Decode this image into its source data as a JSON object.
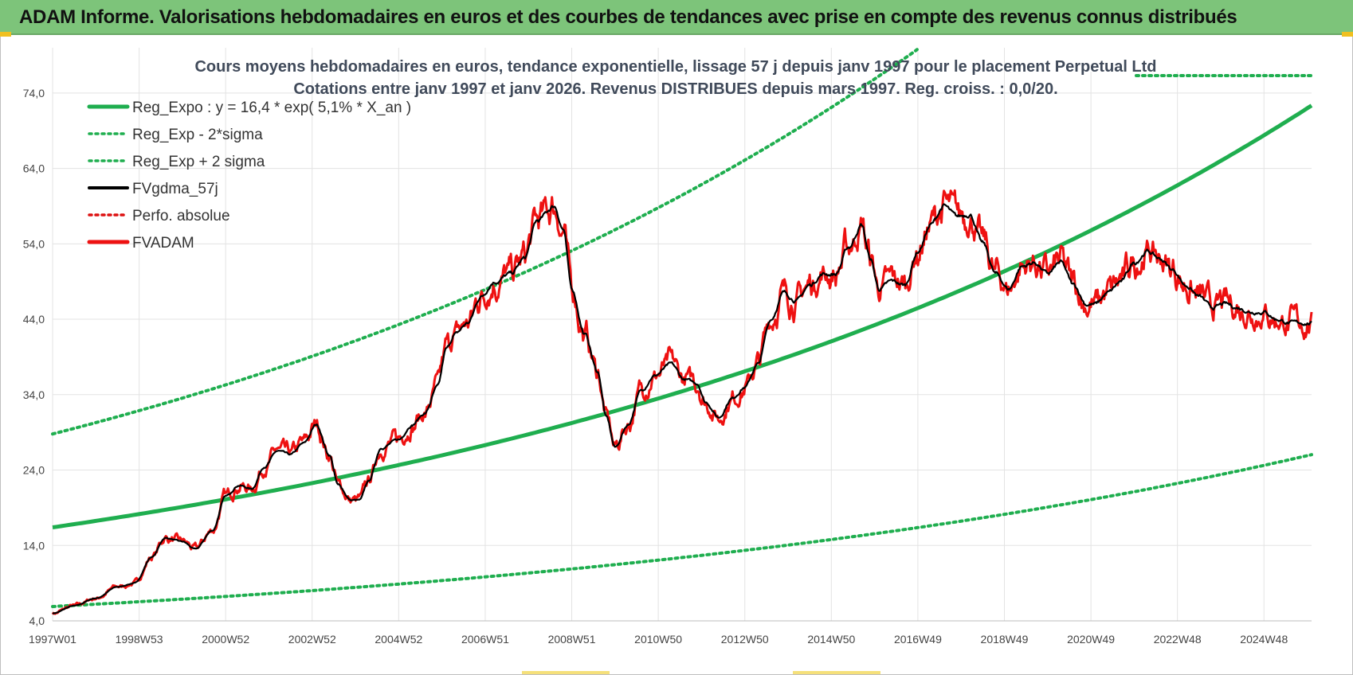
{
  "header": {
    "title": "ADAM Informe. Valorisations hebdomadaires en euros et des courbes de tendances avec prise en compte des revenus connus distribués"
  },
  "colors": {
    "header_bg": "#7dc47a",
    "trend": "#1fae4f",
    "actual": "#ee1111",
    "smooth": "#000000",
    "grid": "#e3e3e3"
  },
  "chart_data": {
    "type": "line",
    "title": "Cours moyens hebdomadaires en euros, tendance exponentielle, lissage 57 j depuis janv 1997 pour le placement Perpetual Ltd",
    "subtitle": "Cotations entre janv 1997 et janv 2026. Revenus DISTRIBUES depuis mars 1997. Reg. croiss. : 0,0/20.",
    "xlabel": "",
    "ylabel": "",
    "x_range": [
      1997.0,
      2026.1
    ],
    "ylim": [
      4,
      80
    ],
    "y_ticks": [
      "4,0",
      "14,0",
      "24,0",
      "34,0",
      "44,0",
      "54,0",
      "64,0",
      "74,0"
    ],
    "x_ticks": [
      {
        "label": "1997W01",
        "x": 1997.0
      },
      {
        "label": "1998W53",
        "x": 1999.0
      },
      {
        "label": "2000W52",
        "x": 2001.0
      },
      {
        "label": "2002W52",
        "x": 2003.0
      },
      {
        "label": "2004W52",
        "x": 2005.0
      },
      {
        "label": "2006W51",
        "x": 2007.0
      },
      {
        "label": "2008W51",
        "x": 2009.0
      },
      {
        "label": "2010W50",
        "x": 2011.0
      },
      {
        "label": "2012W50",
        "x": 2013.0
      },
      {
        "label": "2014W50",
        "x": 2015.0
      },
      {
        "label": "2016W49",
        "x": 2017.0
      },
      {
        "label": "2018W49",
        "x": 2019.0
      },
      {
        "label": "2020W49",
        "x": 2021.0
      },
      {
        "label": "2022W48",
        "x": 2023.0
      },
      {
        "label": "2024W48",
        "x": 2025.0
      }
    ],
    "grid": true,
    "legend_position": "top-left",
    "trend": {
      "a": 16.4,
      "rate": 0.051,
      "sigma_factor": 0.64
    },
    "series": [
      {
        "name": "Reg_Expo : y = 16,4 * exp( 5,1% *  X_an )",
        "style": "solid-thick",
        "color": "#1fae4f"
      },
      {
        "name": "Reg_Exp - 2*sigma",
        "style": "dotted",
        "color": "#1fae4f"
      },
      {
        "name": "Reg_Exp + 2 sigma",
        "style": "dotted",
        "color": "#1fae4f"
      },
      {
        "name": "FVgdma_57j",
        "style": "solid",
        "color": "#000000"
      },
      {
        "name": "Perfo. absolue",
        "style": "dotted",
        "color": "#dd1111"
      },
      {
        "name": "FVADAM",
        "style": "solid-thick",
        "color": "#ee1111"
      }
    ],
    "price_anchors": [
      [
        1997.0,
        5.0
      ],
      [
        1997.5,
        6.0
      ],
      [
        1998.0,
        7.0
      ],
      [
        1998.5,
        8.5
      ],
      [
        1998.9,
        9.0
      ],
      [
        1999.3,
        12.5
      ],
      [
        1999.6,
        15.0
      ],
      [
        2000.0,
        14.5
      ],
      [
        2000.3,
        13.5
      ],
      [
        2000.7,
        16.0
      ],
      [
        2001.0,
        20.5
      ],
      [
        2001.3,
        22.0
      ],
      [
        2001.6,
        21.5
      ],
      [
        2001.9,
        24.5
      ],
      [
        2002.2,
        26.5
      ],
      [
        2002.5,
        26.0
      ],
      [
        2002.8,
        27.5
      ],
      [
        2003.1,
        30.0
      ],
      [
        2003.4,
        26.0
      ],
      [
        2003.6,
        22.0
      ],
      [
        2003.9,
        20.0
      ],
      [
        2004.1,
        20.0
      ],
      [
        2004.3,
        22.5
      ],
      [
        2004.6,
        27.0
      ],
      [
        2005.0,
        28.0
      ],
      [
        2005.3,
        30.0
      ],
      [
        2005.6,
        31.5
      ],
      [
        2005.9,
        35.0
      ],
      [
        2006.1,
        40.0
      ],
      [
        2006.3,
        42.0
      ],
      [
        2006.6,
        43.5
      ],
      [
        2006.9,
        47.0
      ],
      [
        2007.2,
        49.0
      ],
      [
        2007.6,
        50.0
      ],
      [
        2007.9,
        52.0
      ],
      [
        2008.2,
        57.0
      ],
      [
        2008.6,
        59.0
      ],
      [
        2008.8,
        56.0
      ],
      [
        2009.0,
        48.0
      ],
      [
        2009.3,
        42.0
      ],
      [
        2009.6,
        37.0
      ],
      [
        2009.8,
        31.0
      ],
      [
        2010.0,
        27.0
      ],
      [
        2010.3,
        30.0
      ],
      [
        2010.6,
        34.5
      ],
      [
        2010.9,
        36.5
      ],
      [
        2011.3,
        38.0
      ],
      [
        2011.6,
        36.0
      ],
      [
        2011.9,
        35.5
      ],
      [
        2012.1,
        33.0
      ],
      [
        2012.4,
        31.0
      ],
      [
        2012.7,
        33.5
      ],
      [
        2013.0,
        35.0
      ],
      [
        2013.3,
        38.0
      ],
      [
        2013.6,
        44.0
      ],
      [
        2013.9,
        47.5
      ],
      [
        2014.2,
        46.5
      ],
      [
        2014.5,
        48.5
      ],
      [
        2014.8,
        50.0
      ],
      [
        2015.1,
        50.0
      ],
      [
        2015.4,
        53.5
      ],
      [
        2015.7,
        56.5
      ],
      [
        2015.9,
        52.0
      ],
      [
        2016.1,
        48.0
      ],
      [
        2016.4,
        49.0
      ],
      [
        2016.7,
        48.5
      ],
      [
        2017.0,
        53.0
      ],
      [
        2017.3,
        56.5
      ],
      [
        2017.6,
        59.0
      ],
      [
        2017.9,
        57.5
      ],
      [
        2018.2,
        58.0
      ],
      [
        2018.5,
        54.0
      ],
      [
        2018.8,
        50.0
      ],
      [
        2019.1,
        48.0
      ],
      [
        2019.4,
        51.0
      ],
      [
        2019.7,
        51.5
      ],
      [
        2020.0,
        50.0
      ],
      [
        2020.3,
        51.5
      ],
      [
        2020.6,
        48.5
      ],
      [
        2020.9,
        46.0
      ],
      [
        2021.1,
        46.0
      ],
      [
        2021.4,
        47.5
      ],
      [
        2021.7,
        49.0
      ],
      [
        2022.0,
        51.5
      ],
      [
        2022.3,
        53.0
      ],
      [
        2022.6,
        52.0
      ],
      [
        2022.9,
        50.5
      ],
      [
        2023.2,
        48.5
      ],
      [
        2023.5,
        47.0
      ],
      [
        2023.8,
        45.5
      ],
      [
        2024.1,
        46.0
      ],
      [
        2024.4,
        45.5
      ],
      [
        2024.7,
        45.0
      ],
      [
        2025.0,
        45.0
      ],
      [
        2025.3,
        44.0
      ],
      [
        2025.6,
        43.5
      ],
      [
        2026.0,
        43.5
      ],
      [
        2026.1,
        43.5
      ]
    ]
  }
}
